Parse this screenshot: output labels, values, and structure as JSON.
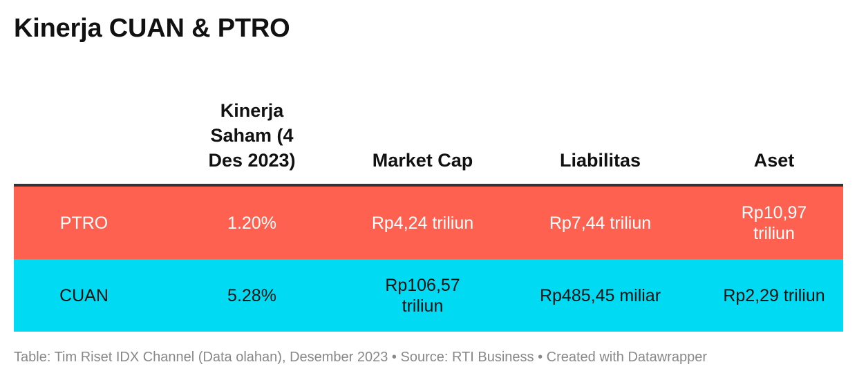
{
  "title": "Kinerja CUAN & PTRO",
  "chart_data": {
    "type": "table",
    "columns": [
      "",
      "Kinerja Saham (4 Des 2023)",
      "Market Cap",
      "Liabilitas",
      "Aset"
    ],
    "rows": [
      {
        "name": "PTRO",
        "color": "#ff6150",
        "cells": [
          "PTRO",
          "1.20%",
          "Rp4,24 triliun",
          "Rp7,44 triliun",
          "Rp10,97 triliun"
        ]
      },
      {
        "name": "CUAN",
        "color": "#00dbf3",
        "cells": [
          "CUAN",
          "5.28%",
          "Rp106,57 triliun",
          "Rp485,45 miliar",
          "Rp2,29 triliun"
        ]
      }
    ]
  },
  "footer": "Table: Tim Riset IDX Channel (Data olahan), Desember 2023 • Source: RTI Business • Created with Datawrapper"
}
